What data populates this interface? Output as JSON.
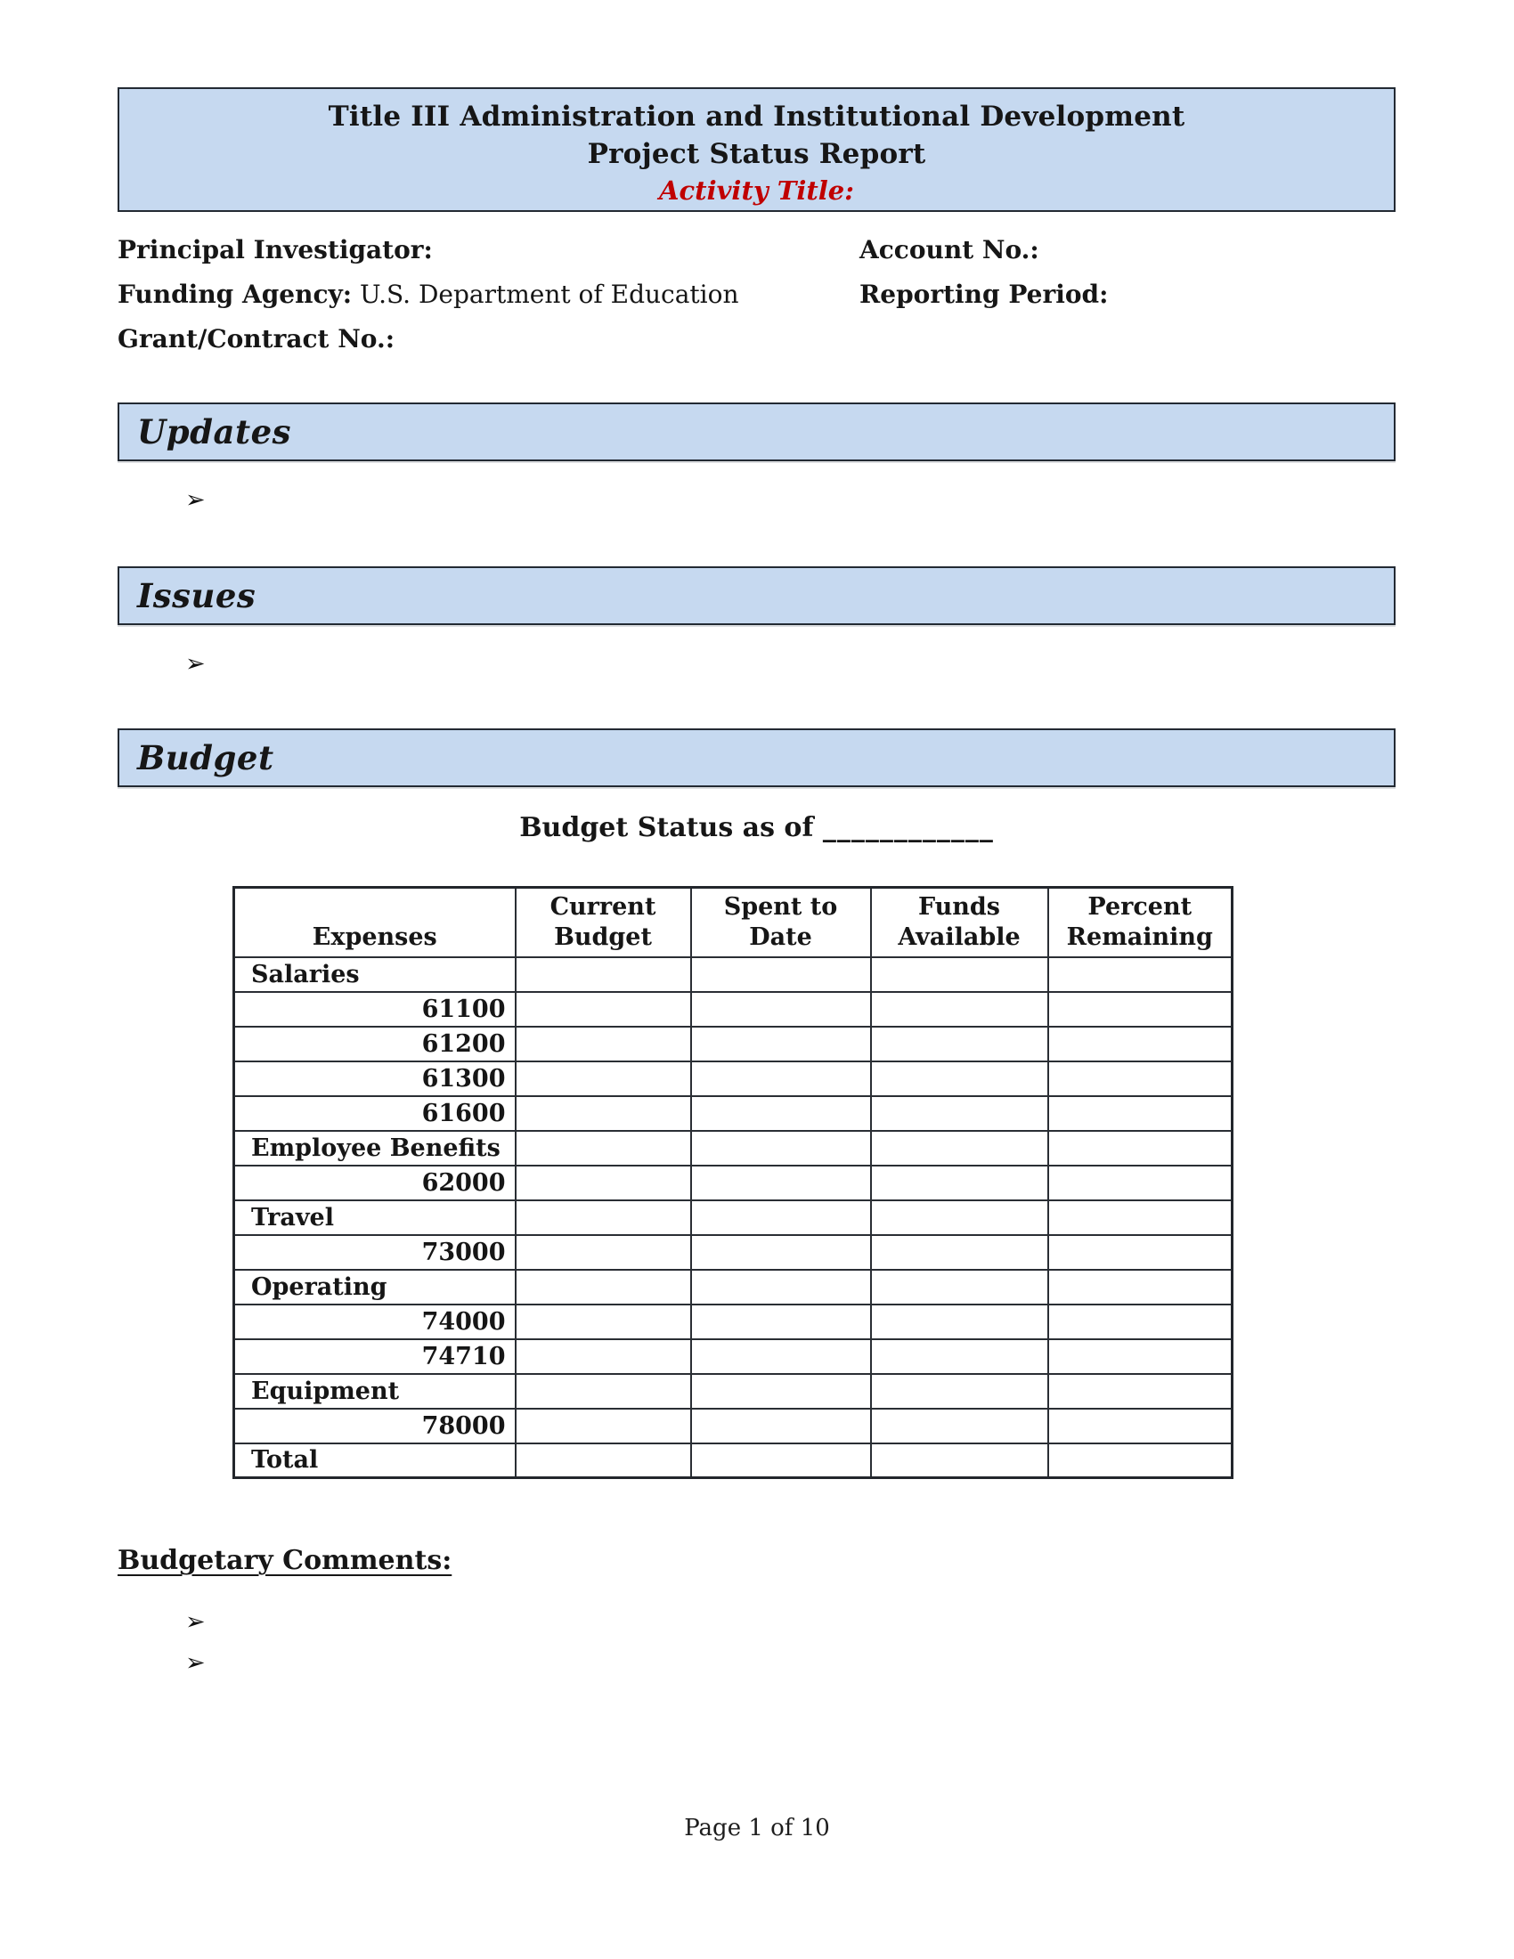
{
  "header_box": {
    "title_line1": "Title III Administration and Institutional Development",
    "title_line2": "Project Status Report",
    "title_line3": "Activity Title:"
  },
  "info_fields": {
    "principal_investigator_label": "Principal Investigator:",
    "principal_investigator_value": "",
    "funding_agency_label": "Funding Agency:",
    "funding_agency_value": "U.S. Department of Education",
    "grant_contract_label": "Grant/Contract No.:",
    "grant_contract_value": "",
    "account_no_label": "Account No.:",
    "account_no_value": "",
    "reporting_period_label": "Reporting Period:",
    "reporting_period_value": ""
  },
  "sections": {
    "updates_title": "Updates",
    "issues_title": "Issues",
    "budget_title": "Budget"
  },
  "bullet_glyph": "➢",
  "budget_status": {
    "label": "Budget Status as of",
    "blank": "____________"
  },
  "budget_table": {
    "headers": [
      "Expenses",
      "Current Budget",
      "Spent to Date",
      "Funds Available",
      "Percent Remaining"
    ],
    "rows": [
      {
        "label": "Salaries",
        "type": "category",
        "current_budget": "",
        "spent_to_date": "",
        "funds_available": "",
        "percent_remaining": ""
      },
      {
        "label": "61100",
        "type": "code",
        "current_budget": "",
        "spent_to_date": "",
        "funds_available": "",
        "percent_remaining": ""
      },
      {
        "label": "61200",
        "type": "code",
        "current_budget": "",
        "spent_to_date": "",
        "funds_available": "",
        "percent_remaining": ""
      },
      {
        "label": "61300",
        "type": "code",
        "current_budget": "",
        "spent_to_date": "",
        "funds_available": "",
        "percent_remaining": ""
      },
      {
        "label": "61600",
        "type": "code",
        "current_budget": "",
        "spent_to_date": "",
        "funds_available": "",
        "percent_remaining": ""
      },
      {
        "label": "Employee Benefits",
        "type": "category",
        "current_budget": "",
        "spent_to_date": "",
        "funds_available": "",
        "percent_remaining": ""
      },
      {
        "label": "62000",
        "type": "code",
        "current_budget": "",
        "spent_to_date": "",
        "funds_available": "",
        "percent_remaining": ""
      },
      {
        "label": "Travel",
        "type": "category",
        "current_budget": "",
        "spent_to_date": "",
        "funds_available": "",
        "percent_remaining": ""
      },
      {
        "label": "73000",
        "type": "code",
        "current_budget": "",
        "spent_to_date": "",
        "funds_available": "",
        "percent_remaining": ""
      },
      {
        "label": "Operating",
        "type": "category",
        "current_budget": "",
        "spent_to_date": "",
        "funds_available": "",
        "percent_remaining": ""
      },
      {
        "label": "74000",
        "type": "code",
        "current_budget": "",
        "spent_to_date": "",
        "funds_available": "",
        "percent_remaining": ""
      },
      {
        "label": "74710",
        "type": "code",
        "current_budget": "",
        "spent_to_date": "",
        "funds_available": "",
        "percent_remaining": ""
      },
      {
        "label": "Equipment",
        "type": "category",
        "current_budget": "",
        "spent_to_date": "",
        "funds_available": "",
        "percent_remaining": ""
      },
      {
        "label": "78000",
        "type": "code",
        "current_budget": "",
        "spent_to_date": "",
        "funds_available": "",
        "percent_remaining": ""
      },
      {
        "label": "Total",
        "type": "category",
        "current_budget": "",
        "spent_to_date": "",
        "funds_available": "",
        "percent_remaining": ""
      }
    ]
  },
  "comments": {
    "title": "Budgetary Comments:"
  },
  "footer": {
    "page_text": "Page 1 of 10"
  },
  "colors": {
    "band_fill": "#c6d9f0",
    "accent_red": "#c00000",
    "border_dark": "#232a33"
  }
}
